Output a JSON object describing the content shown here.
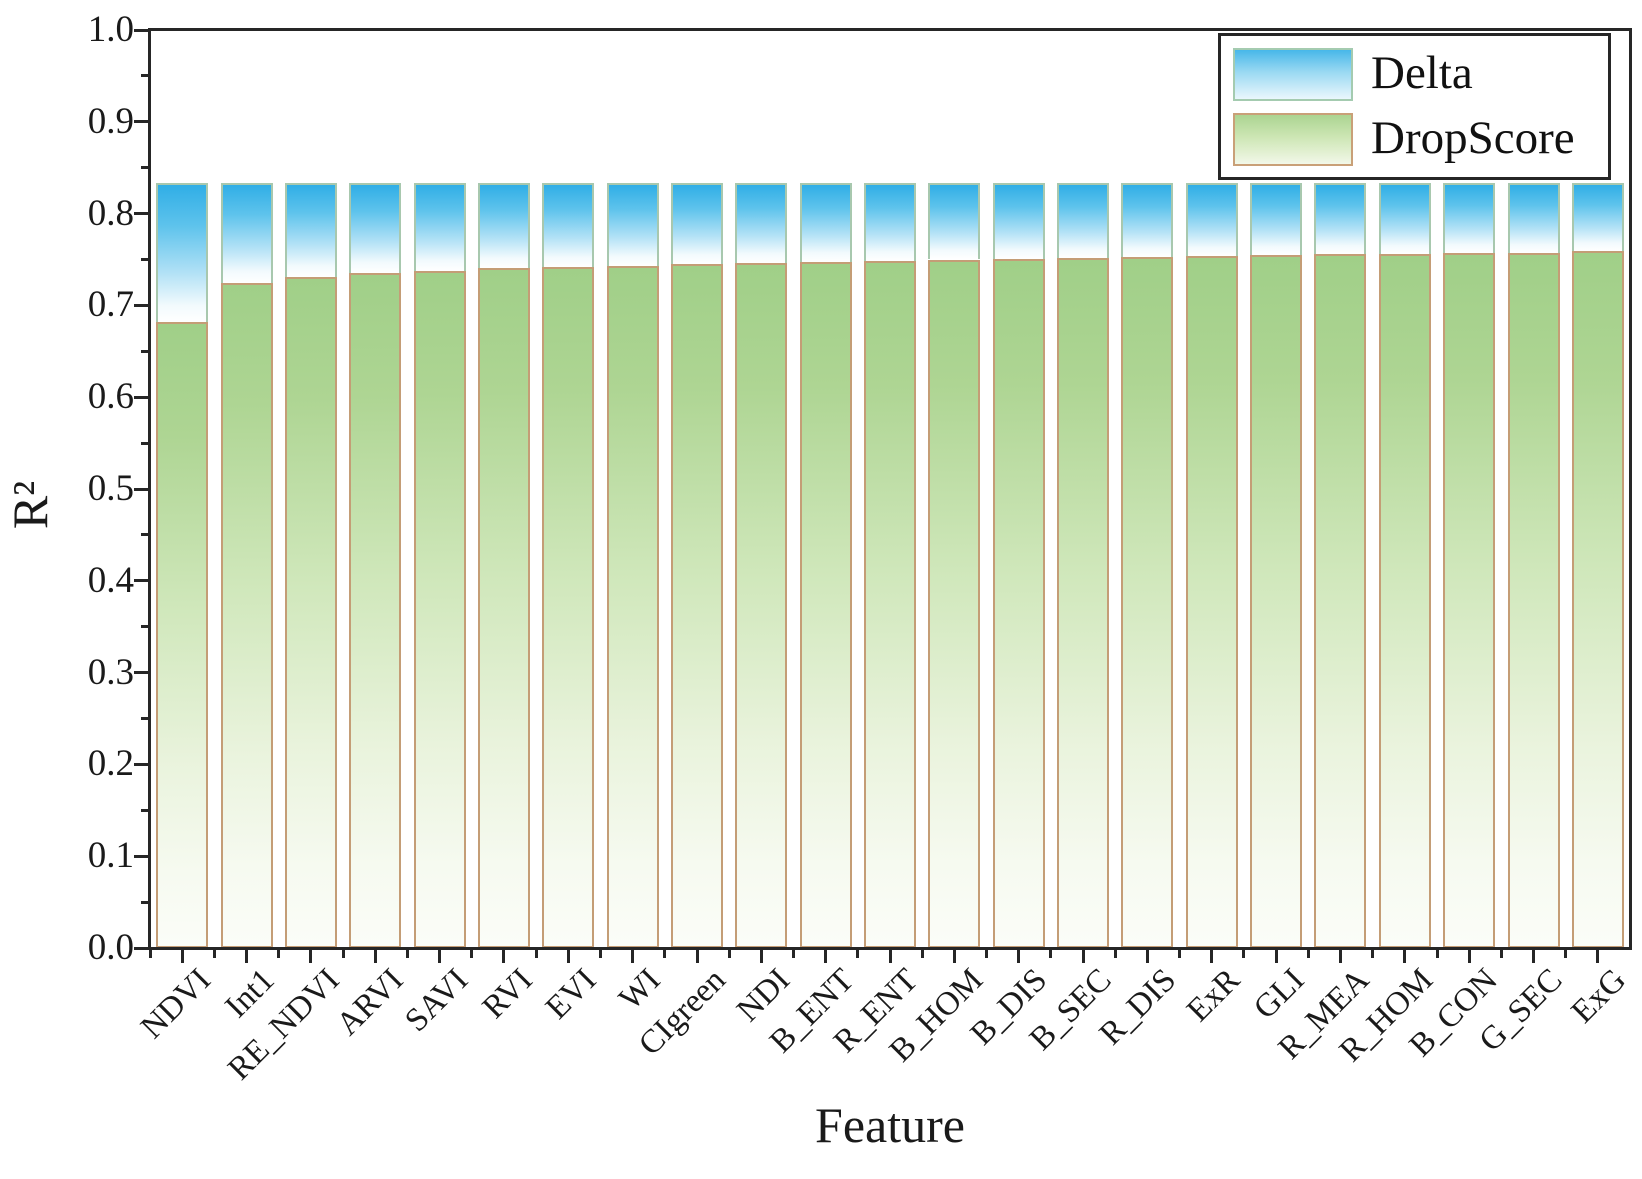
{
  "axes": {
    "x_label": "Feature",
    "y_label": "R²",
    "y_tick_labels": [
      "0.0",
      "0.1",
      "0.2",
      "0.3",
      "0.4",
      "0.5",
      "0.6",
      "0.7",
      "0.8",
      "0.9",
      "1.0"
    ],
    "y_major_ticks": [
      0.0,
      0.1,
      0.2,
      0.3,
      0.4,
      0.5,
      0.6,
      0.7,
      0.8,
      0.9,
      1.0
    ],
    "y_minor_ticks": [
      0.05,
      0.15,
      0.25,
      0.35,
      0.45,
      0.55,
      0.65,
      0.75,
      0.85,
      0.95
    ]
  },
  "legend": {
    "entries": [
      {
        "label": "Delta"
      },
      {
        "label": "DropScore"
      }
    ]
  },
  "colors": {
    "delta_top": "#30aee6",
    "delta_bottom": "#ffffff",
    "dropscore_top": "#a0cf88",
    "dropscore_bottom": "#fbfdf8",
    "dropscore_border": "#c49d76",
    "delta_border": "#a8c8ae",
    "axis": "#262626",
    "text": "#1a1a1a"
  },
  "chart_data": {
    "type": "bar",
    "stacked": true,
    "title": "",
    "xlabel": "Feature",
    "ylabel": "R²",
    "ylim": [
      0.0,
      1.0
    ],
    "grid": false,
    "legend_position": "top-right",
    "bar_total": 0.833,
    "categories": [
      "NDVI",
      "Int1",
      "RE_NDVI",
      "ARVI",
      "SAVI",
      "RVI",
      "EVI",
      "WI",
      "CIgreen",
      "NDI",
      "B_ENT",
      "R_ENT",
      "B_HOM",
      "B_DIS",
      "B_SEC",
      "R_DIS",
      "ExR",
      "GLI",
      "R_MEA",
      "R_HOM",
      "B_CON",
      "G_SEC",
      "ExG"
    ],
    "series": [
      {
        "name": "DropScore",
        "values": [
          0.682,
          0.724,
          0.731,
          0.735,
          0.737,
          0.741,
          0.742,
          0.743,
          0.745,
          0.746,
          0.747,
          0.748,
          0.75,
          0.751,
          0.752,
          0.753,
          0.754,
          0.755,
          0.756,
          0.756,
          0.757,
          0.757,
          0.759
        ]
      },
      {
        "name": "Delta",
        "values": [
          0.151,
          0.109,
          0.102,
          0.098,
          0.096,
          0.092,
          0.091,
          0.09,
          0.088,
          0.087,
          0.086,
          0.085,
          0.083,
          0.082,
          0.081,
          0.08,
          0.079,
          0.078,
          0.077,
          0.077,
          0.076,
          0.076,
          0.074
        ]
      }
    ]
  }
}
